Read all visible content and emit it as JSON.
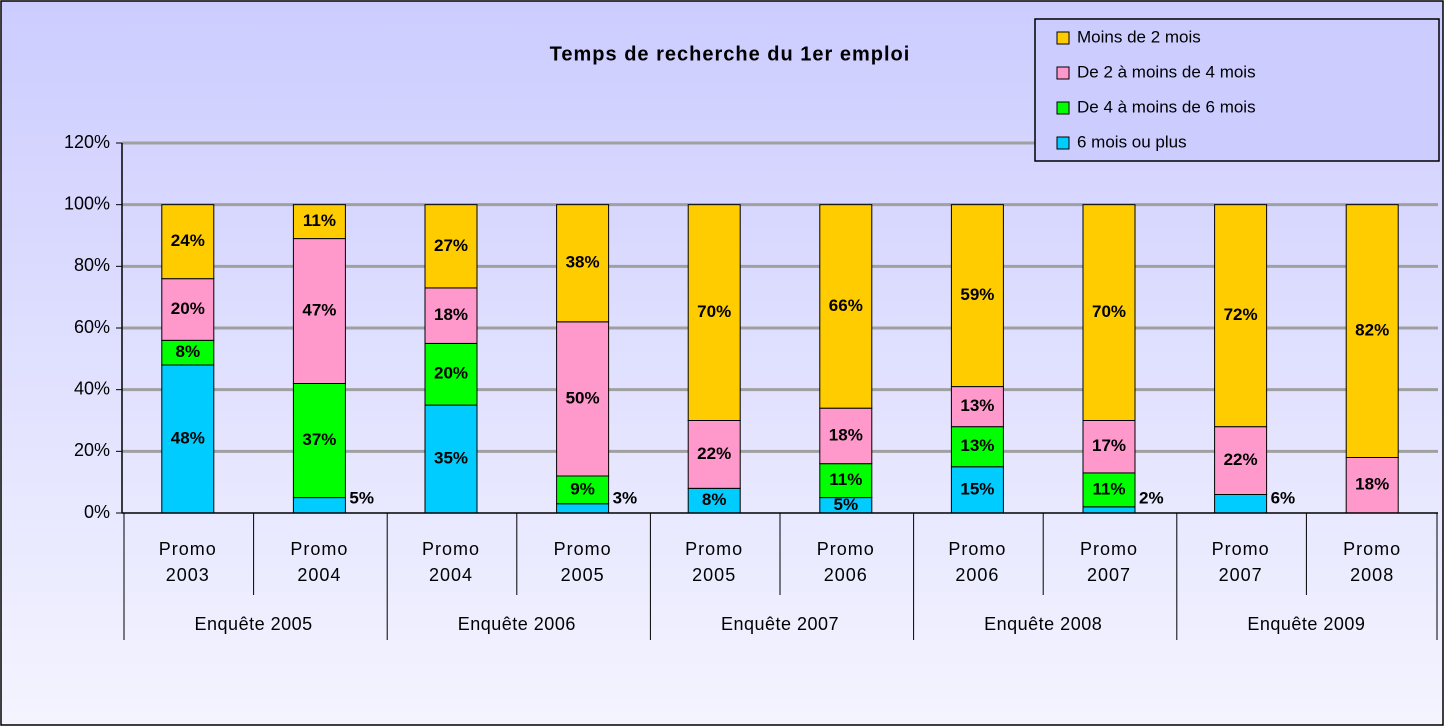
{
  "chart_data": {
    "type": "stacked_bar",
    "title": "Temps de recherche du 1er emploi",
    "categories": [
      "Promo 2003",
      "Promo 2004",
      "Promo 2004",
      "Promo 2005",
      "Promo 2005",
      "Promo 2006",
      "Promo 2006",
      "Promo 2007",
      "Promo 2007",
      "Promo 2008"
    ],
    "groups": [
      "Enquête 2005",
      "Enquête 2006",
      "Enquête 2007",
      "Enquête 2008",
      "Enquête 2009"
    ],
    "series": [
      {
        "name": "6 mois ou plus",
        "color": "#00ccff",
        "values": [
          48,
          5,
          35,
          3,
          8,
          5,
          15,
          2,
          6,
          null
        ],
        "value_labels": [
          "48%",
          "5%",
          "35%",
          "3%",
          "8%",
          "5%",
          "15%",
          "2%",
          "6%",
          null
        ]
      },
      {
        "name": "De 4 à moins de 6 mois",
        "color": "#00ff00",
        "values": [
          8,
          37,
          20,
          9,
          null,
          11,
          13,
          11,
          null,
          null
        ],
        "value_labels": [
          "8%",
          "37%",
          "20%",
          "9%",
          null,
          "11%",
          "13%",
          "11%",
          null,
          null
        ]
      },
      {
        "name": "De 2 à moins de 4 mois",
        "color": "#ff99cc",
        "values": [
          20,
          47,
          18,
          50,
          22,
          18,
          13,
          17,
          22,
          18
        ],
        "value_labels": [
          "20%",
          "47%",
          "18%",
          "50%",
          "22%",
          "18%",
          "13%",
          "17%",
          "22%",
          "18%"
        ]
      },
      {
        "name": "Moins de 2 mois",
        "color": "#ffcc00",
        "values": [
          24,
          11,
          27,
          38,
          70,
          66,
          59,
          70,
          72,
          82
        ],
        "value_labels": [
          "24%",
          "11%",
          "27%",
          "38%",
          "70%",
          "66%",
          "59%",
          "70%",
          "72%",
          "82%"
        ]
      }
    ],
    "ylim": [
      0,
      120
    ],
    "yticks": [
      {
        "value": 0,
        "label": "0%"
      },
      {
        "value": 20,
        "label": "20%"
      },
      {
        "value": 40,
        "label": "40%"
      },
      {
        "value": 60,
        "label": "60%"
      },
      {
        "value": 80,
        "label": "80%"
      },
      {
        "value": 100,
        "label": "100%"
      },
      {
        "value": 120,
        "label": "120%"
      }
    ],
    "grid": true,
    "legend": "top-right"
  }
}
